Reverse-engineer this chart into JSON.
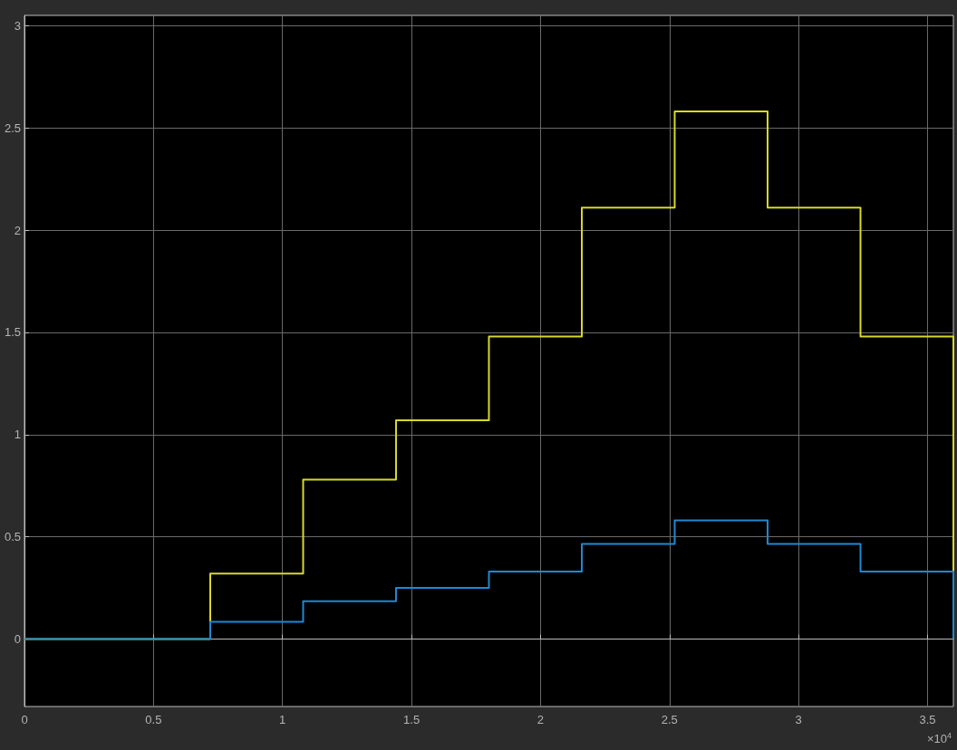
{
  "chart_data": {
    "type": "step",
    "xlim": [
      0,
      3.6
    ],
    "ylim": [
      -0.33,
      3.05
    ],
    "xticks": [
      0,
      0.5,
      1,
      1.5,
      2,
      2.5,
      3,
      3.5
    ],
    "yticks": [
      0,
      0.5,
      1,
      1.5,
      2,
      2.5,
      3
    ],
    "grid": true,
    "annotations": [
      "×10$^{4}$"
    ],
    "series": [
      {
        "color": "#d8d82a",
        "x": [
          0,
          0.72,
          1.08,
          1.44,
          1.8,
          2.16,
          2.52,
          2.88,
          3.24,
          3.6
        ],
        "values": [
          0,
          0.32,
          0.78,
          1.07,
          1.48,
          2.11,
          2.58,
          2.11,
          1.48,
          0
        ]
      },
      {
        "color": "#1f88d2",
        "x": [
          0,
          0.72,
          1.08,
          1.44,
          1.8,
          2.16,
          2.52,
          2.88,
          3.24,
          3.6
        ],
        "values": [
          0,
          0.084,
          0.185,
          0.25,
          0.33,
          0.465,
          0.58,
          0.465,
          0.33,
          0
        ]
      }
    ]
  }
}
